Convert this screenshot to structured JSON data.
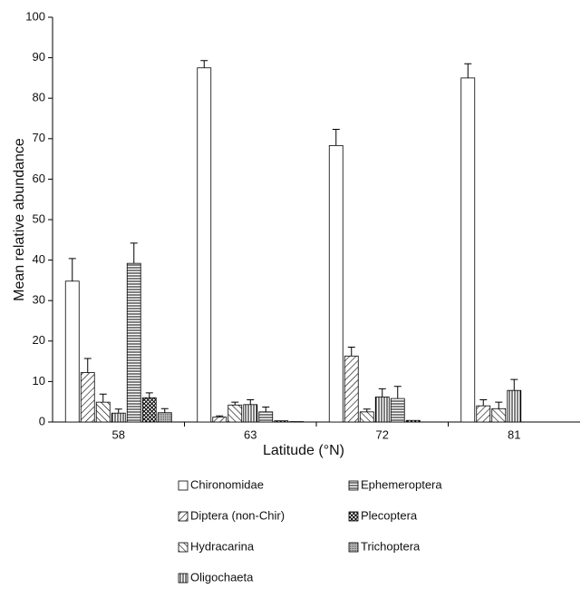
{
  "chart_data": {
    "type": "bar",
    "x_label": "Latitude (°N)",
    "y_label": "Mean relative abundance",
    "categories": [
      "58",
      "63",
      "72",
      "81"
    ],
    "ylim": [
      0,
      100
    ],
    "yticks": [
      0,
      10,
      20,
      30,
      40,
      50,
      60,
      70,
      80,
      90,
      100
    ],
    "series": [
      {
        "name": "Chironomidae",
        "pattern": "none",
        "color": "#000000",
        "values": [
          34.8,
          87.5,
          68.3,
          85.0
        ],
        "errors": [
          5.6,
          1.8,
          4.0,
          3.5
        ]
      },
      {
        "name": "Diptera (non-Chir)",
        "pattern": "diagonal",
        "color": "#000000",
        "values": [
          12.2,
          1.2,
          16.3,
          4.0
        ],
        "errors": [
          3.5,
          0.3,
          2.2,
          1.5
        ]
      },
      {
        "name": "Hydracarina",
        "pattern": "back-diagonal",
        "color": "#000000",
        "values": [
          4.9,
          4.2,
          2.5,
          3.3
        ],
        "errors": [
          2.0,
          0.7,
          0.7,
          1.6
        ]
      },
      {
        "name": "Oligochaeta",
        "pattern": "vertical",
        "color": "#000000",
        "values": [
          2.2,
          4.3,
          6.2,
          7.8
        ],
        "errors": [
          1.0,
          1.2,
          2.0,
          2.7
        ]
      },
      {
        "name": "Ephemeroptera",
        "pattern": "horizontal",
        "color": "#000000",
        "values": [
          39.2,
          2.5,
          5.8,
          0
        ],
        "errors": [
          5.0,
          1.2,
          3.0,
          0
        ]
      },
      {
        "name": "Plecoptera",
        "pattern": "crosshatch",
        "color": "#000000",
        "values": [
          6.0,
          0.3,
          0.4,
          0
        ],
        "errors": [
          1.2,
          0,
          0,
          0
        ]
      },
      {
        "name": "Trichoptera",
        "pattern": "dots",
        "color": "#000000",
        "values": [
          2.3,
          0.1,
          0,
          0
        ],
        "errors": [
          1.0,
          0,
          0,
          0
        ]
      }
    ]
  }
}
